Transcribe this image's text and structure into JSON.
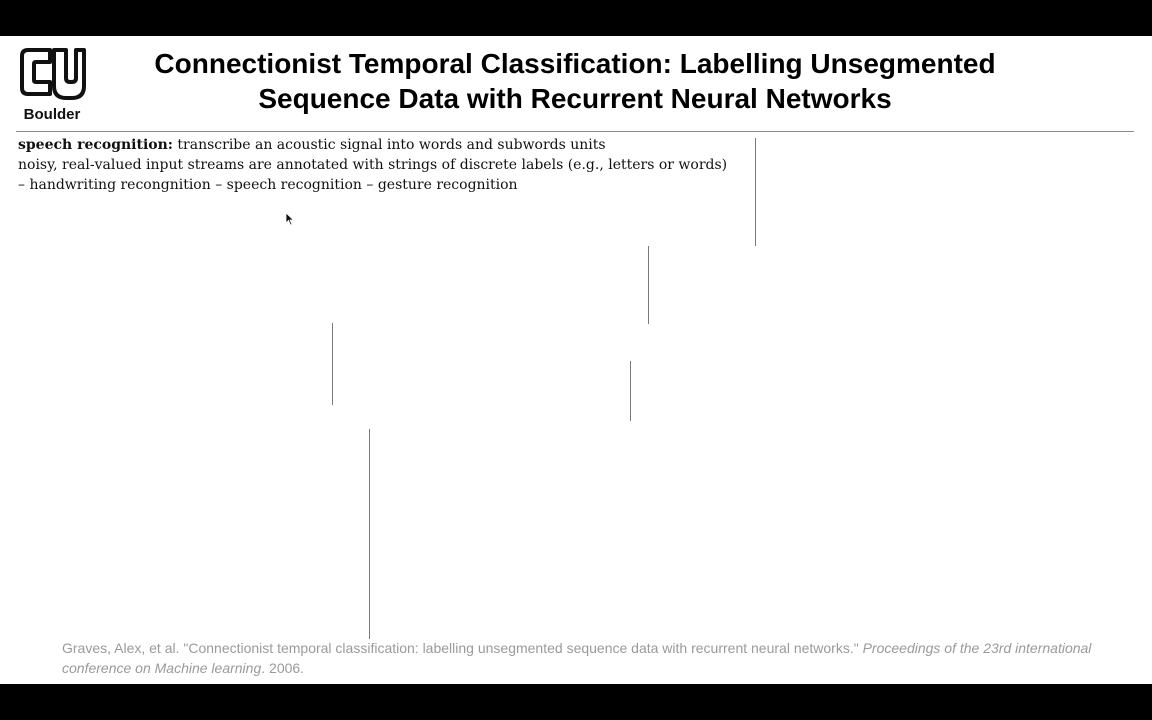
{
  "logo": {
    "icon": "cu-boulder-logo-icon",
    "text": "Boulder"
  },
  "title": {
    "line1": "Connectionist Temporal Classification: Labelling Unsegmented",
    "line2": "Sequence Data with Recurrent Neural Networks"
  },
  "body": {
    "line1_lead": "speech recognition:",
    "line1_rest": " transcribe an acoustic signal into words and subwords units",
    "line2": "noisy, real-valued input streams are annotated with strings of discrete labels (e.g., letters or words)",
    "line3": "– handwriting recongnition – speech recognition – gesture recognition"
  },
  "citation": {
    "authors_title": "Graves, Alex, et al. \"Connectionist temporal classification: labelling unsegmented sequence data with recurrent neural networks.\" ",
    "venue": "Proceedings of the 23rd international conference on Machine learning",
    "year": ". 2006."
  },
  "colors": {
    "frame": "#000000",
    "slide": "#ffffff",
    "citation": "#9a9a9a"
  }
}
